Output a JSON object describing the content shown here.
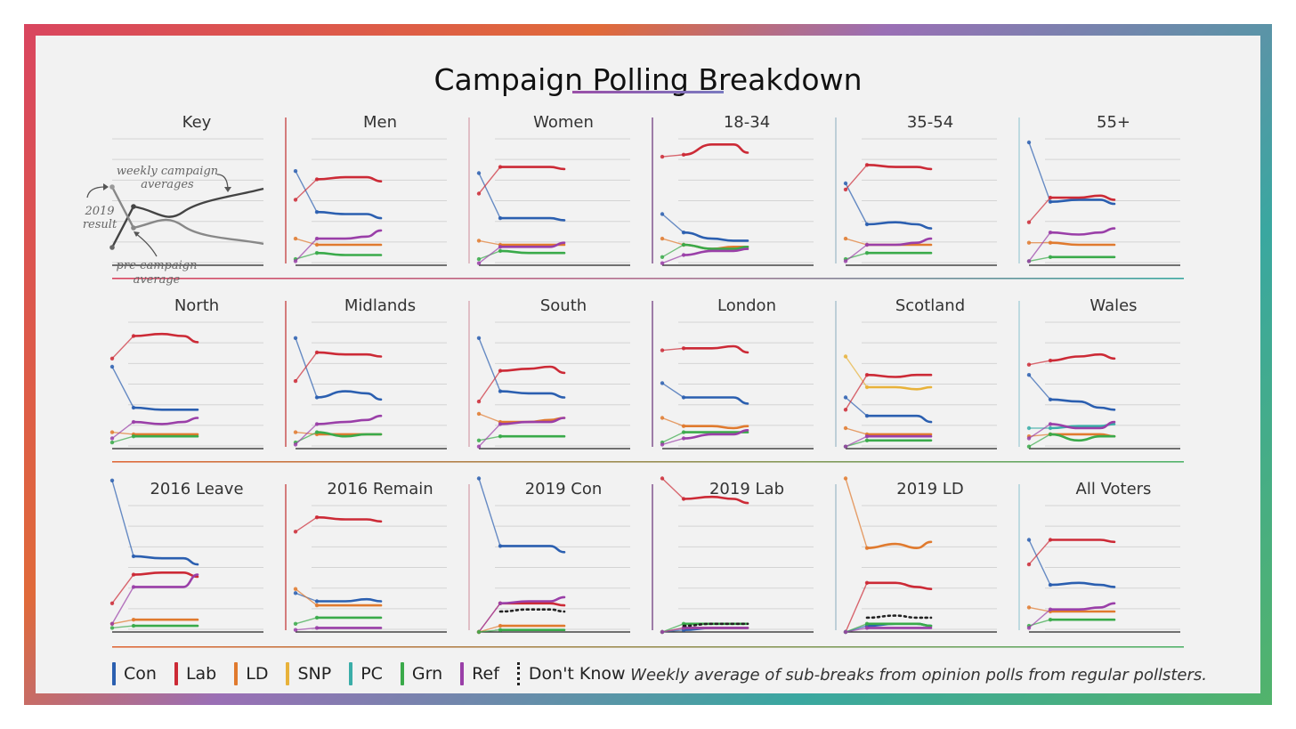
{
  "title": "Campaign Polling Breakdown",
  "footnote": "Weekly average of sub-breaks from opinion polls from regular pollsters.",
  "key": {
    "title": "Key",
    "label_weekly_1": "weekly campaign",
    "label_weekly_2": "averages",
    "label_result_1": "2019",
    "label_result_2": "result",
    "label_pre_1": "pre-campaign",
    "label_pre_2": "average"
  },
  "legend": [
    {
      "name": "Con",
      "color": "#2b5fb0"
    },
    {
      "name": "Lab",
      "color": "#cc2a36"
    },
    {
      "name": "LD",
      "color": "#e07a2e"
    },
    {
      "name": "SNP",
      "color": "#e8b23a"
    },
    {
      "name": "PC",
      "color": "#3aada8"
    },
    {
      "name": "Grn",
      "color": "#3aaa4a"
    },
    {
      "name": "Ref",
      "color": "#9a3fa8"
    },
    {
      "name": "Don't Know",
      "color": "#222222"
    }
  ],
  "chart_data": {
    "type": "line",
    "note": "small multiples; each series: 2019 result, pre-campaign average, then weekly campaign averages",
    "ylim": [
      0,
      60
    ],
    "panels": [
      {
        "title": "Men",
        "series": [
          {
            "name": "Con",
            "values": [
              46,
              26,
              25,
              25,
              23
            ]
          },
          {
            "name": "Lab",
            "values": [
              32,
              42,
              43,
              43,
              41
            ]
          },
          {
            "name": "LD",
            "values": [
              13,
              10,
              10,
              10,
              10
            ]
          },
          {
            "name": "Grn",
            "values": [
              3,
              6,
              5,
              5,
              5
            ]
          },
          {
            "name": "Ref",
            "values": [
              2,
              13,
              13,
              14,
              17
            ]
          }
        ]
      },
      {
        "title": "Women",
        "series": [
          {
            "name": "Con",
            "values": [
              45,
              23,
              23,
              23,
              22
            ]
          },
          {
            "name": "Lab",
            "values": [
              35,
              48,
              48,
              48,
              47
            ]
          },
          {
            "name": "LD",
            "values": [
              12,
              10,
              10,
              10,
              10
            ]
          },
          {
            "name": "Grn",
            "values": [
              3,
              7,
              6,
              6,
              6
            ]
          },
          {
            "name": "Ref",
            "values": [
              1,
              9,
              9,
              9,
              11
            ]
          }
        ]
      },
      {
        "title": "18-34",
        "series": [
          {
            "name": "Con",
            "values": [
              25,
              16,
              13,
              12,
              12
            ]
          },
          {
            "name": "Lab",
            "values": [
              53,
              54,
              59,
              59,
              55
            ]
          },
          {
            "name": "LD",
            "values": [
              13,
              10,
              8,
              9,
              9
            ]
          },
          {
            "name": "Grn",
            "values": [
              4,
              10,
              8,
              8,
              9
            ]
          },
          {
            "name": "Ref",
            "values": [
              1,
              5,
              7,
              7,
              8
            ]
          }
        ]
      },
      {
        "title": "35-54",
        "series": [
          {
            "name": "Con",
            "values": [
              40,
              20,
              21,
              20,
              18
            ]
          },
          {
            "name": "Lab",
            "values": [
              37,
              49,
              48,
              48,
              47
            ]
          },
          {
            "name": "LD",
            "values": [
              13,
              10,
              10,
              10,
              10
            ]
          },
          {
            "name": "Grn",
            "values": [
              3,
              6,
              6,
              6,
              6
            ]
          },
          {
            "name": "Ref",
            "values": [
              2,
              10,
              10,
              11,
              13
            ]
          }
        ]
      },
      {
        "title": "55+",
        "series": [
          {
            "name": "Con",
            "values": [
              60,
              31,
              32,
              32,
              30
            ]
          },
          {
            "name": "Lab",
            "values": [
              21,
              33,
              33,
              34,
              32
            ]
          },
          {
            "name": "LD",
            "values": [
              11,
              11,
              10,
              10,
              10
            ]
          },
          {
            "name": "Grn",
            "values": [
              2,
              4,
              4,
              4,
              4
            ]
          },
          {
            "name": "Ref",
            "values": [
              2,
              16,
              15,
              16,
              18
            ]
          }
        ]
      },
      {
        "title": "North",
        "series": [
          {
            "name": "Con",
            "values": [
              40,
              20,
              19,
              19,
              19
            ]
          },
          {
            "name": "Lab",
            "values": [
              44,
              55,
              56,
              55,
              52
            ]
          },
          {
            "name": "LD",
            "values": [
              8,
              7,
              7,
              7,
              7
            ]
          },
          {
            "name": "Grn",
            "values": [
              3,
              6,
              6,
              6,
              6
            ]
          },
          {
            "name": "Ref",
            "values": [
              5,
              13,
              12,
              13,
              15
            ]
          }
        ]
      },
      {
        "title": "Midlands",
        "series": [
          {
            "name": "Con",
            "values": [
              54,
              25,
              28,
              27,
              24
            ]
          },
          {
            "name": "Lab",
            "values": [
              33,
              47,
              46,
              46,
              45
            ]
          },
          {
            "name": "LD",
            "values": [
              8,
              7,
              7,
              7,
              7
            ]
          },
          {
            "name": "Grn",
            "values": [
              3,
              8,
              6,
              7,
              7
            ]
          },
          {
            "name": "Ref",
            "values": [
              2,
              12,
              13,
              14,
              16
            ]
          }
        ]
      },
      {
        "title": "South",
        "series": [
          {
            "name": "Con",
            "values": [
              54,
              28,
              27,
              27,
              25
            ]
          },
          {
            "name": "Lab",
            "values": [
              23,
              38,
              39,
              40,
              37
            ]
          },
          {
            "name": "LD",
            "values": [
              17,
              13,
              13,
              14,
              15
            ]
          },
          {
            "name": "Grn",
            "values": [
              4,
              6,
              6,
              6,
              6
            ]
          },
          {
            "name": "Ref",
            "values": [
              1,
              12,
              13,
              13,
              15
            ]
          }
        ]
      },
      {
        "title": "London",
        "series": [
          {
            "name": "Con",
            "values": [
              32,
              25,
              25,
              25,
              22
            ]
          },
          {
            "name": "Lab",
            "values": [
              48,
              49,
              49,
              50,
              47
            ]
          },
          {
            "name": "LD",
            "values": [
              15,
              11,
              11,
              10,
              11
            ]
          },
          {
            "name": "Grn",
            "values": [
              3,
              8,
              8,
              8,
              8
            ]
          },
          {
            "name": "Ref",
            "values": [
              2,
              5,
              7,
              7,
              9
            ]
          }
        ]
      },
      {
        "title": "Scotland",
        "series": [
          {
            "name": "SNP",
            "values": [
              45,
              30,
              30,
              29,
              30
            ]
          },
          {
            "name": "Con",
            "values": [
              25,
              16,
              16,
              16,
              13
            ]
          },
          {
            "name": "Lab",
            "values": [
              19,
              36,
              35,
              36,
              36
            ]
          },
          {
            "name": "LD",
            "values": [
              10,
              7,
              7,
              7,
              7
            ]
          },
          {
            "name": "Grn",
            "values": [
              1,
              4,
              4,
              4,
              4
            ]
          },
          {
            "name": "Ref",
            "values": [
              1,
              6,
              6,
              6,
              6
            ]
          }
        ]
      },
      {
        "title": "Wales",
        "series": [
          {
            "name": "Lab",
            "values": [
              41,
              43,
              45,
              46,
              44
            ]
          },
          {
            "name": "Con",
            "values": [
              36,
              24,
              23,
              20,
              19
            ]
          },
          {
            "name": "PC",
            "values": [
              10,
              10,
              11,
              11,
              12
            ]
          },
          {
            "name": "LD",
            "values": [
              6,
              7,
              7,
              7,
              6
            ]
          },
          {
            "name": "Grn",
            "values": [
              1,
              7,
              4,
              6,
              6
            ]
          },
          {
            "name": "Ref",
            "values": [
              5,
              12,
              10,
              10,
              13
            ]
          }
        ]
      },
      {
        "title": "2016 Leave",
        "series": [
          {
            "name": "Con",
            "values": [
              74,
              37,
              36,
              36,
              33
            ]
          },
          {
            "name": "Lab",
            "values": [
              14,
              28,
              29,
              29,
              27
            ]
          },
          {
            "name": "LD",
            "values": [
              4,
              6,
              6,
              6,
              6
            ]
          },
          {
            "name": "Grn",
            "values": [
              2,
              3,
              3,
              3,
              3
            ]
          },
          {
            "name": "Ref",
            "values": [
              4,
              22,
              22,
              22,
              28
            ]
          }
        ]
      },
      {
        "title": "2016 Remain",
        "series": [
          {
            "name": "Lab",
            "values": [
              49,
              56,
              55,
              55,
              54
            ]
          },
          {
            "name": "Con",
            "values": [
              19,
              15,
              15,
              16,
              15
            ]
          },
          {
            "name": "LD",
            "values": [
              21,
              13,
              13,
              13,
              13
            ]
          },
          {
            "name": "Grn",
            "values": [
              4,
              7,
              7,
              7,
              7
            ]
          },
          {
            "name": "Ref",
            "values": [
              1,
              2,
              2,
              2,
              2
            ]
          }
        ]
      },
      {
        "title": "2019 Con",
        "series": [
          {
            "name": "Con",
            "values": [
              75,
              42,
              42,
              42,
              39
            ]
          },
          {
            "name": "Lab",
            "values": [
              0,
              14,
              14,
              14,
              13
            ]
          },
          {
            "name": "Ref",
            "values": [
              0,
              14,
              15,
              15,
              17
            ]
          },
          {
            "name": "LD",
            "values": [
              0,
              3,
              3,
              3,
              3
            ]
          },
          {
            "name": "Grn",
            "values": [
              0,
              1,
              1,
              1,
              1
            ]
          },
          {
            "name": "Don't Know",
            "values": [
              null,
              10,
              11,
              11,
              10
            ]
          }
        ]
      },
      {
        "title": "2019 Lab",
        "series": [
          {
            "name": "Lab",
            "values": [
              75,
              65,
              66,
              65,
              63
            ]
          },
          {
            "name": "Con",
            "values": [
              0,
              1,
              2,
              2,
              2
            ]
          },
          {
            "name": "LD",
            "values": [
              0,
              2,
              2,
              2,
              2
            ]
          },
          {
            "name": "Grn",
            "values": [
              0,
              4,
              4,
              4,
              4
            ]
          },
          {
            "name": "Ref",
            "values": [
              0,
              2,
              2,
              2,
              2
            ]
          },
          {
            "name": "Don't Know",
            "values": [
              null,
              3,
              4,
              4,
              4
            ]
          }
        ]
      },
      {
        "title": "2019 LD",
        "series": [
          {
            "name": "LD",
            "values": [
              75,
              41,
              43,
              41,
              44
            ]
          },
          {
            "name": "Lab",
            "values": [
              0,
              24,
              24,
              22,
              21
            ]
          },
          {
            "name": "Con",
            "values": [
              0,
              3,
              4,
              4,
              3
            ]
          },
          {
            "name": "Grn",
            "values": [
              0,
              4,
              4,
              4,
              3
            ]
          },
          {
            "name": "Ref",
            "values": [
              0,
              2,
              2,
              2,
              2
            ]
          },
          {
            "name": "Don't Know",
            "values": [
              null,
              7,
              8,
              7,
              7
            ]
          }
        ]
      },
      {
        "title": "All Voters",
        "series": [
          {
            "name": "Con",
            "values": [
              45,
              23,
              24,
              23,
              22
            ]
          },
          {
            "name": "Lab",
            "values": [
              33,
              45,
              45,
              45,
              44
            ]
          },
          {
            "name": "LD",
            "values": [
              12,
              10,
              10,
              10,
              10
            ]
          },
          {
            "name": "Grn",
            "values": [
              3,
              6,
              6,
              6,
              6
            ]
          },
          {
            "name": "Ref",
            "values": [
              2,
              11,
              11,
              12,
              14
            ]
          }
        ]
      }
    ]
  }
}
